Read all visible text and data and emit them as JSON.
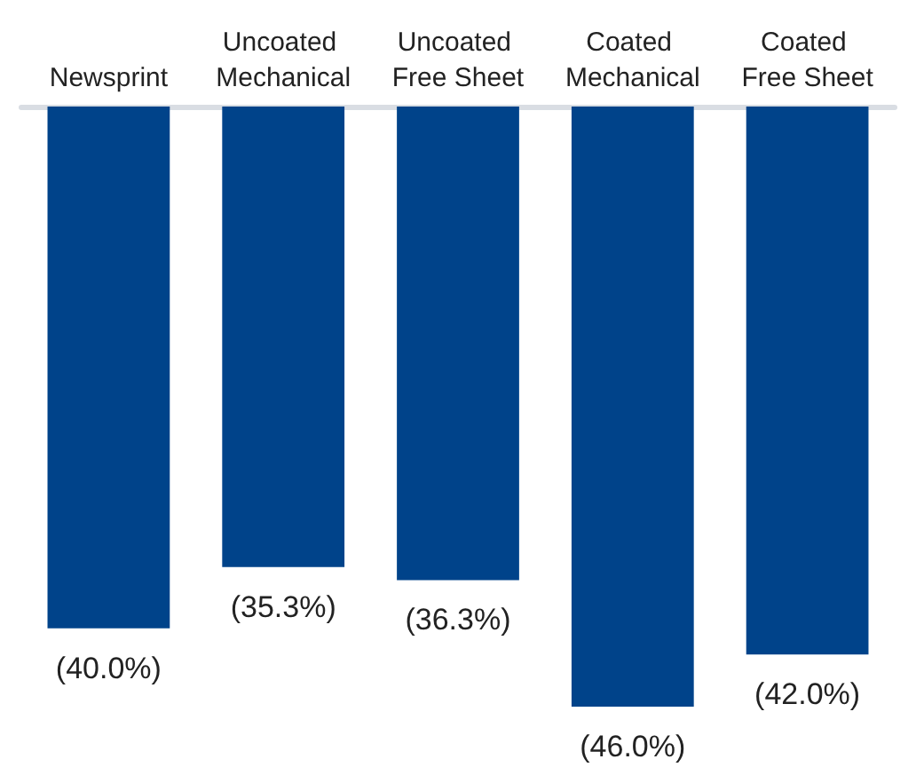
{
  "chart_data": {
    "type": "bar",
    "categories": [
      "Newsprint",
      "Uncoated Mechanical",
      "Uncoated Free Sheet",
      "Coated Mechanical",
      "Coated Free Sheet"
    ],
    "values": [
      -40.0,
      -35.3,
      -36.3,
      -46.0,
      -42.0
    ],
    "value_labels": [
      "(40.0%)",
      "(35.3%)",
      "(36.3%)",
      "(46.0%)",
      "(42.0%)"
    ],
    "color": "#00438a"
  }
}
